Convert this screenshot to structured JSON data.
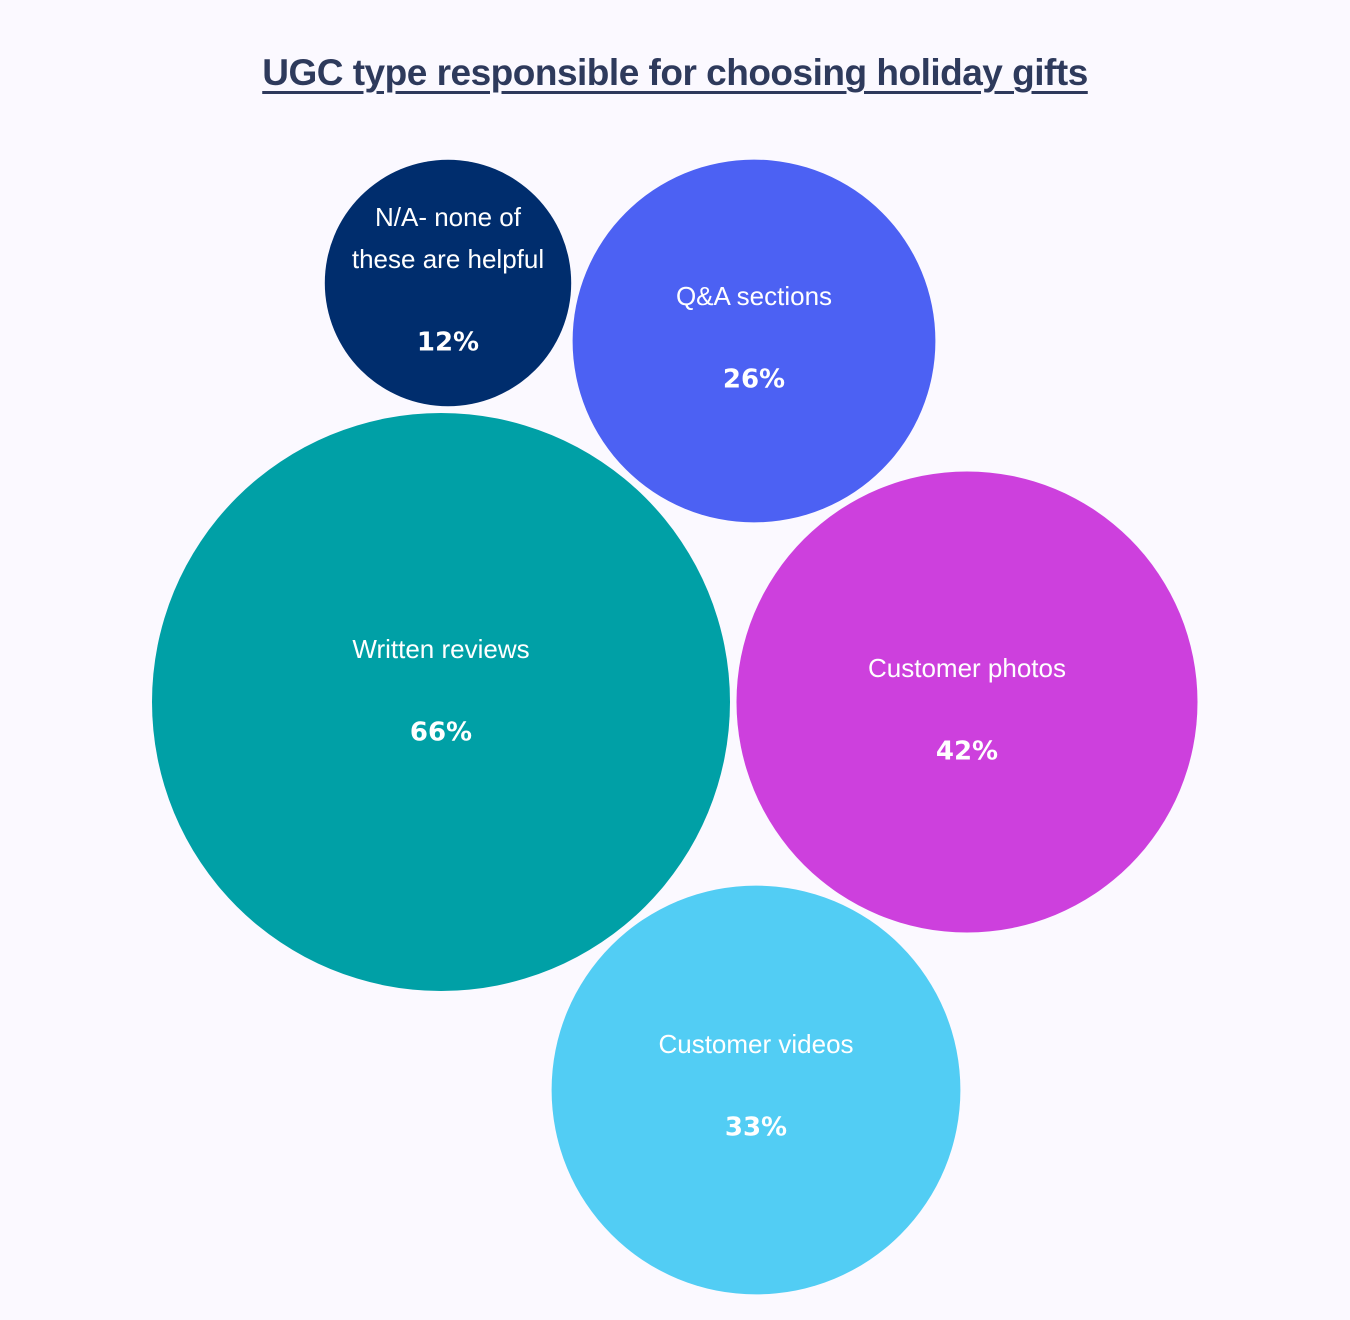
{
  "chart_data": {
    "type": "bubble",
    "title": "UGC type responsible for choosing holiday gifts",
    "unit": "%",
    "items": [
      {
        "label": "N/A- none of these are helpful",
        "label_lines": [
          "N/A- none of",
          "these are helpful"
        ],
        "value": 12,
        "value_text": "12%",
        "color": "#002d6d"
      },
      {
        "label": "Q&A sections",
        "label_lines": [
          "Q&A sections"
        ],
        "value": 26,
        "value_text": "26%",
        "color": "#4c61f3"
      },
      {
        "label": "Written reviews",
        "label_lines": [
          "Written reviews"
        ],
        "value": 66,
        "value_text": "66%",
        "color": "#00a0a6"
      },
      {
        "label": "Customer photos",
        "label_lines": [
          "Customer photos"
        ],
        "value": 42,
        "value_text": "42%",
        "color": "#cd40dd"
      },
      {
        "label": "Customer videos",
        "label_lines": [
          "Customer videos"
        ],
        "value": 33,
        "value_text": "33%",
        "color": "#52cdf4"
      }
    ]
  }
}
